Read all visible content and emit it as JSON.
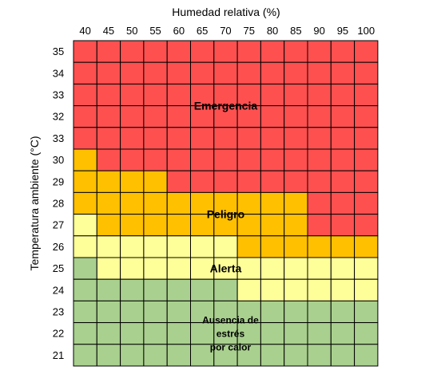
{
  "chart_data": {
    "type": "heatmap",
    "title": "",
    "xlabel": "Humedad relativa (%)",
    "ylabel": "Temperatura ambiente (°C)",
    "x": [
      40,
      45,
      50,
      55,
      60,
      65,
      70,
      75,
      80,
      85,
      90,
      95,
      100
    ],
    "y": [
      35,
      34,
      33,
      32,
      33,
      30,
      29,
      28,
      27,
      26,
      25,
      24,
      23,
      22,
      21
    ],
    "levels": {
      "G": {
        "label": "Ausencia de estrés por calor",
        "color": "#a9d08e"
      },
      "Y": {
        "label": "Alerta",
        "color": "#ffff99"
      },
      "O": {
        "label": "Peligro",
        "color": "#ffc000"
      },
      "R": {
        "label": "Emergencia",
        "color": "#ff5050"
      }
    },
    "grid": [
      "RRRRRRRRRRRRR",
      "RRRRRRRRRRRRR",
      "RRRRRRRRRRRRR",
      "RRRRRRRRRRRRR",
      "RRRRRRRRRRRRR",
      "ORRRRRRRRRRRR",
      "OOOORRRRRRRRR",
      "OOOOOOOOOORRR",
      "YOOOOOOOOORRR",
      "YYYYYYYOOOOOO",
      "GYYYYYYYYYYYY",
      "GGGGGGGYYYYYY",
      "GGGGGGGGGGGGG",
      "GGGGGGGGGGGGG",
      "GGGGGGGGGGGGG"
    ],
    "zone_labels": [
      {
        "lines": [
          "Emergencia"
        ],
        "level": "R"
      },
      {
        "lines": [
          "Peligro"
        ],
        "level": "O"
      },
      {
        "lines": [
          "Alerta"
        ],
        "level": "Y"
      },
      {
        "lines": [
          "Ausencia de",
          "estrés",
          "por calor"
        ],
        "level": "G"
      }
    ]
  }
}
